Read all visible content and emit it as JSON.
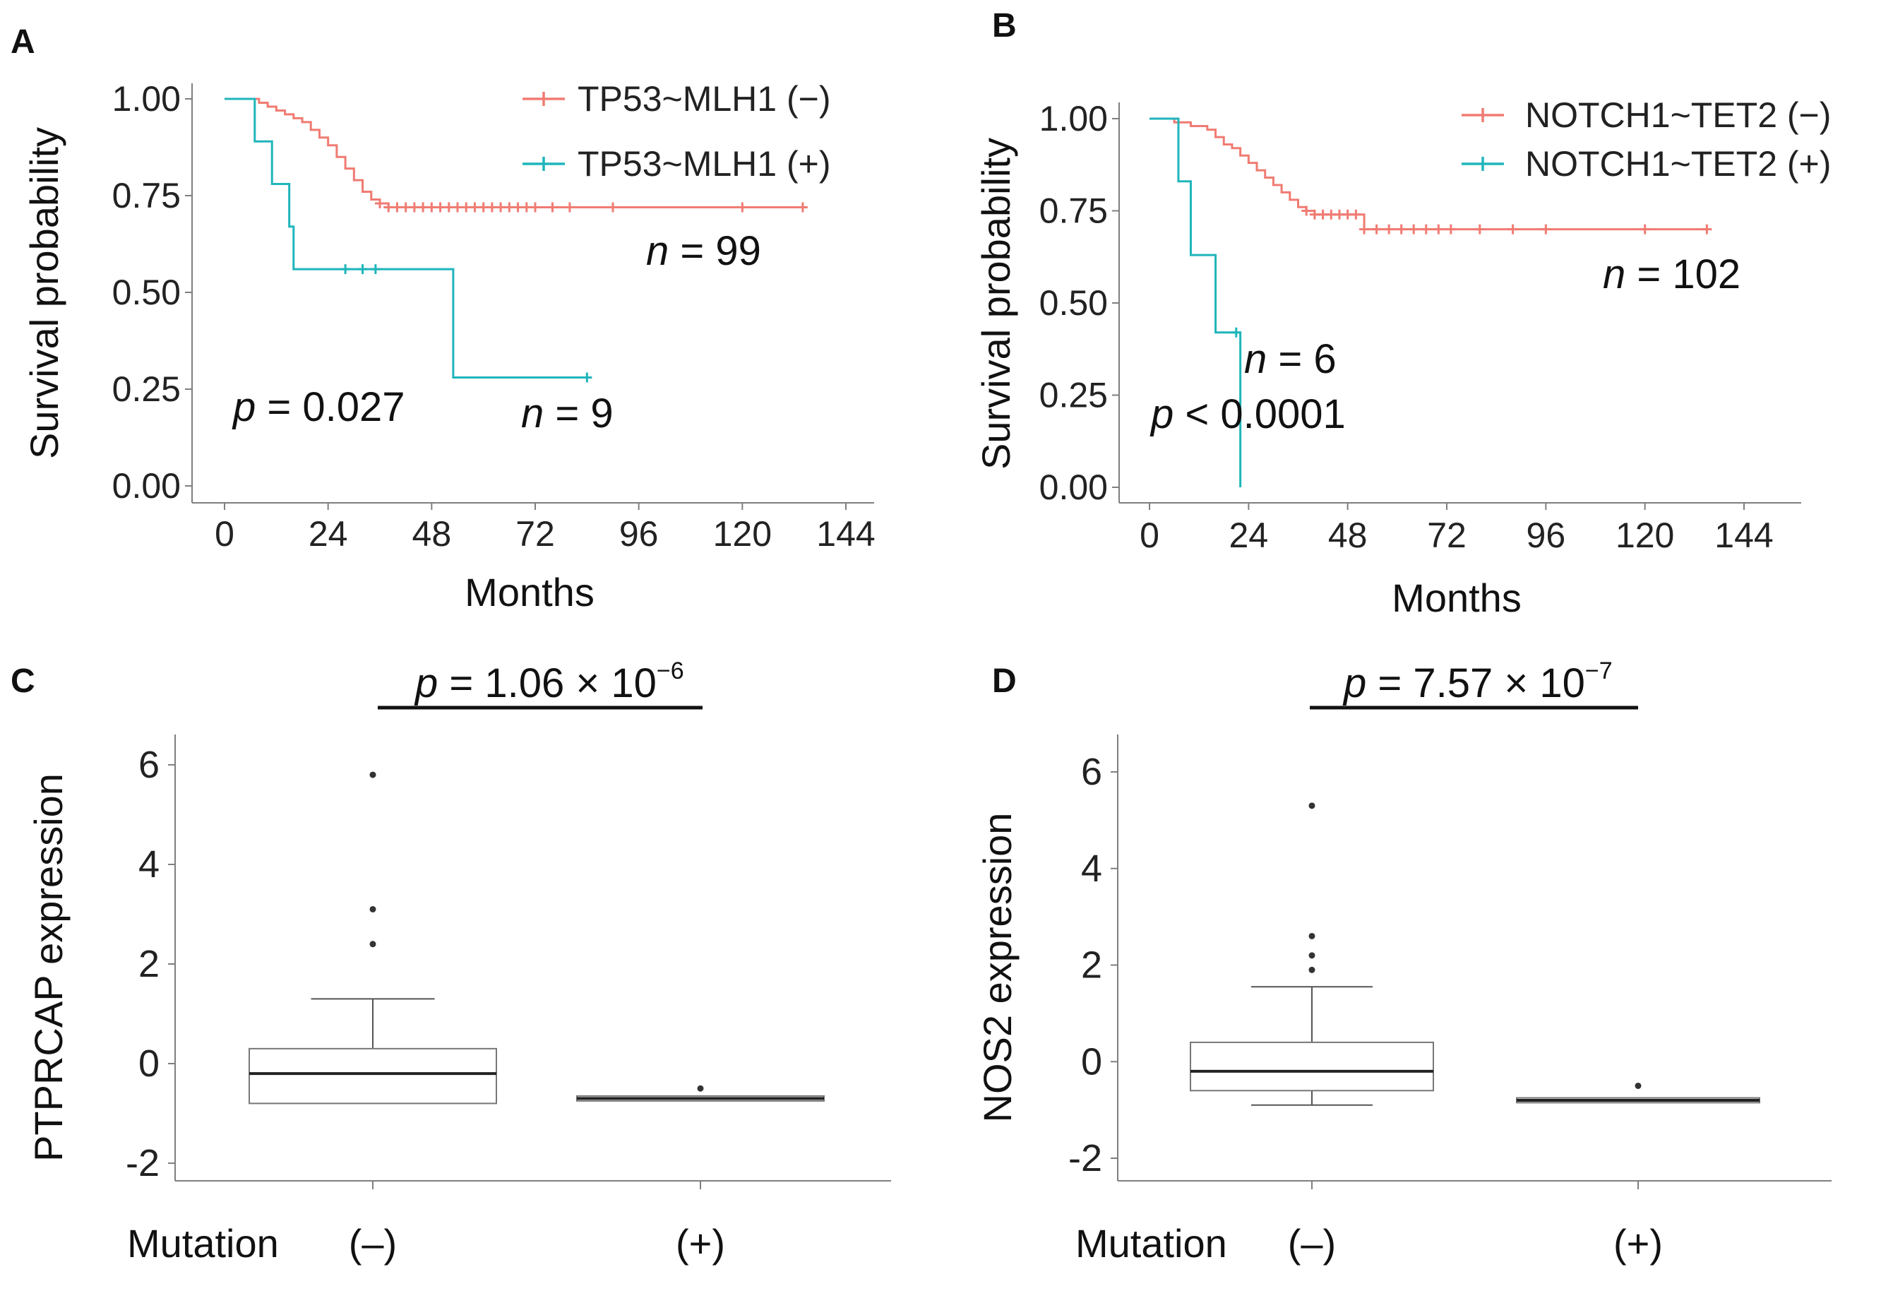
{
  "chart_data": [
    {
      "panel": "A",
      "type": "line",
      "subtype": "kaplan-meier",
      "xlabel": "Months",
      "ylabel": "Survival probability",
      "xlim": [
        0,
        144
      ],
      "ylim": [
        0,
        1
      ],
      "xticks": [
        "0",
        "24",
        "48",
        "72",
        "96",
        "120",
        "144"
      ],
      "yticks": [
        "0.00",
        "0.25",
        "0.50",
        "0.75",
        "1.00"
      ],
      "legend_position": "top-right",
      "series": [
        {
          "name": "TP53~MLH1 (−)",
          "color": "#F07B72",
          "n_label": "n = 99",
          "steps": [
            [
              0,
              1.0
            ],
            [
              8,
              0.99
            ],
            [
              10,
              0.98
            ],
            [
              12,
              0.97
            ],
            [
              14,
              0.96
            ],
            [
              16,
              0.95
            ],
            [
              18,
              0.94
            ],
            [
              20,
              0.92
            ],
            [
              22,
              0.9
            ],
            [
              24,
              0.88
            ],
            [
              26,
              0.85
            ],
            [
              28,
              0.82
            ],
            [
              30,
              0.79
            ],
            [
              32,
              0.76
            ],
            [
              34,
              0.74
            ],
            [
              36,
              0.73
            ],
            [
              38,
              0.72
            ],
            [
              134,
              0.72
            ]
          ],
          "censor_times": [
            36,
            38,
            40,
            42,
            44,
            46,
            48,
            50,
            52,
            54,
            56,
            58,
            60,
            62,
            64,
            66,
            68,
            70,
            72,
            76,
            80,
            90,
            120,
            134
          ]
        },
        {
          "name": "TP53~MLH1 (+)",
          "color": "#1FB5BB",
          "n_label": "n = 9",
          "steps": [
            [
              0,
              1.0
            ],
            [
              7,
              0.89
            ],
            [
              11,
              0.78
            ],
            [
              15,
              0.67
            ],
            [
              16,
              0.56
            ],
            [
              53,
              0.28
            ],
            [
              85,
              0.28
            ]
          ],
          "censor_times": [
            28,
            32,
            35,
            84
          ]
        }
      ],
      "annotations": {
        "p_label": "p",
        "p_value": "= 0.027"
      }
    },
    {
      "panel": "B",
      "type": "line",
      "subtype": "kaplan-meier",
      "xlabel": "Months",
      "ylabel": "Survival probability",
      "xlim": [
        0,
        144
      ],
      "ylim": [
        0,
        1
      ],
      "xticks": [
        "0",
        "24",
        "48",
        "72",
        "96",
        "120",
        "144"
      ],
      "yticks": [
        "0.00",
        "0.25",
        "0.50",
        "0.75",
        "1.00"
      ],
      "legend_position": "top-right",
      "series": [
        {
          "name": "NOTCH1~TET2 (−)",
          "color": "#F07B72",
          "n_label": "n = 102",
          "steps": [
            [
              0,
              1.0
            ],
            [
              6,
              0.99
            ],
            [
              10,
              0.98
            ],
            [
              14,
              0.97
            ],
            [
              16,
              0.95
            ],
            [
              18,
              0.93
            ],
            [
              20,
              0.92
            ],
            [
              22,
              0.9
            ],
            [
              24,
              0.88
            ],
            [
              26,
              0.86
            ],
            [
              28,
              0.84
            ],
            [
              30,
              0.82
            ],
            [
              32,
              0.8
            ],
            [
              34,
              0.78
            ],
            [
              36,
              0.76
            ],
            [
              38,
              0.75
            ],
            [
              40,
              0.74
            ],
            [
              52,
              0.7
            ],
            [
              135,
              0.7
            ]
          ],
          "censor_times": [
            38,
            40,
            42,
            44,
            46,
            48,
            50,
            52,
            55,
            58,
            61,
            64,
            67,
            70,
            73,
            80,
            88,
            96,
            120,
            135
          ]
        },
        {
          "name": "NOTCH1~TET2 (+)",
          "color": "#1FB5BB",
          "n_label": "n = 6",
          "steps": [
            [
              0,
              1.0
            ],
            [
              7,
              0.83
            ],
            [
              10,
              0.63
            ],
            [
              16,
              0.42
            ],
            [
              22,
              0.0
            ]
          ],
          "censor_times": [
            21
          ]
        }
      ],
      "annotations": {
        "p_label": "p",
        "p_value": "< 0.0001"
      }
    },
    {
      "panel": "C",
      "type": "box",
      "ylabel": "PTPRCAP expression",
      "xlabel": "Mutation",
      "categories": [
        "(–)",
        "(+)"
      ],
      "ylim": [
        -2.5,
        6.5
      ],
      "yticks": [
        "-2",
        "0",
        "2",
        "4",
        "6"
      ],
      "boxes": [
        {
          "group": "(–)",
          "min": -0.8,
          "q1": -0.8,
          "median": -0.2,
          "q3": 0.3,
          "max": 1.3,
          "outliers": [
            2.4,
            3.1,
            5.8
          ]
        },
        {
          "group": "(+)",
          "min": -0.75,
          "q1": -0.75,
          "median": -0.7,
          "q3": -0.65,
          "max": -0.65,
          "outliers": [
            -0.5
          ]
        }
      ],
      "p_title": {
        "label": "p",
        "text": "= 1.06 × 10",
        "exp": "−6"
      }
    },
    {
      "panel": "D",
      "type": "box",
      "ylabel": "NOS2 expression",
      "xlabel": "Mutation",
      "categories": [
        "(–)",
        "(+)"
      ],
      "ylim": [
        -2.5,
        6.5
      ],
      "yticks": [
        "-2",
        "0",
        "2",
        "4",
        "6"
      ],
      "boxes": [
        {
          "group": "(–)",
          "min": -0.9,
          "q1": -0.6,
          "median": -0.2,
          "q3": 0.4,
          "max": 1.55,
          "outliers": [
            1.9,
            2.2,
            2.6,
            5.3
          ]
        },
        {
          "group": "(+)",
          "min": -0.85,
          "q1": -0.85,
          "median": -0.8,
          "q3": -0.75,
          "max": -0.75,
          "outliers": [
            -0.5
          ]
        }
      ],
      "p_title": {
        "label": "p",
        "text": "= 7.57 × 10",
        "exp": "−7"
      }
    }
  ],
  "colors": {
    "red": "#F07B72",
    "teal": "#1FB5BB",
    "axis": "#7f7f7f"
  }
}
